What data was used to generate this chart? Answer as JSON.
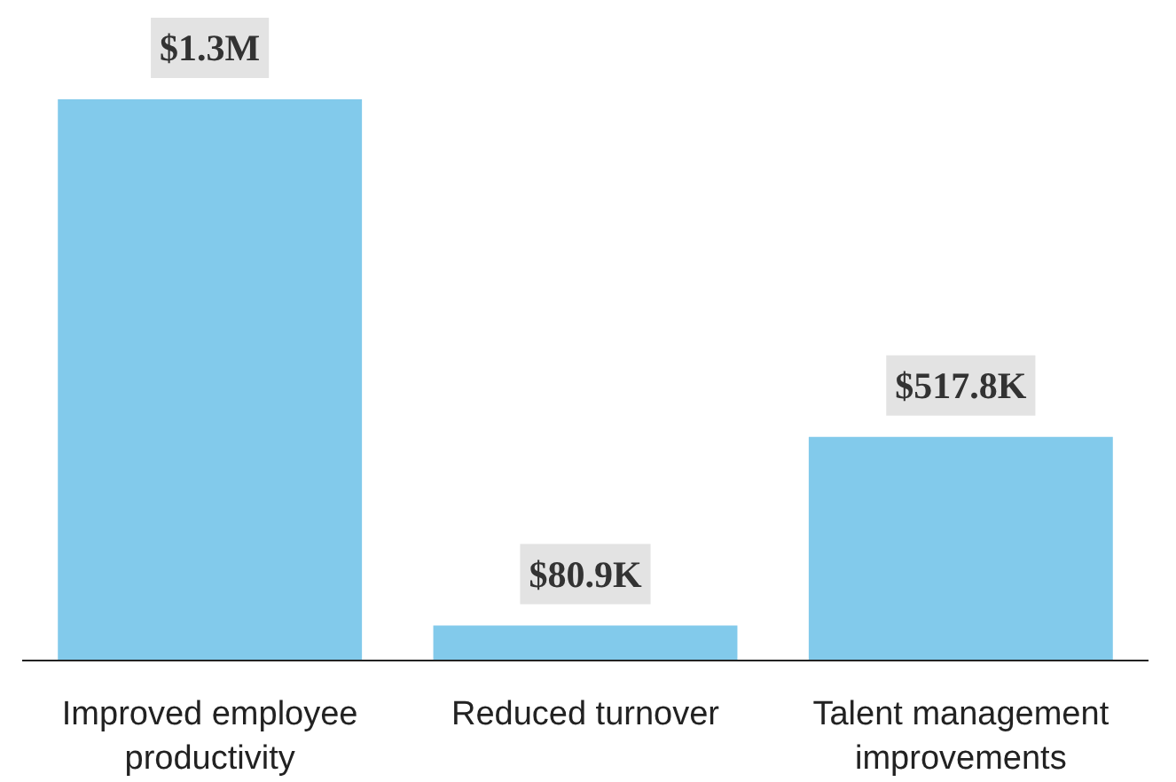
{
  "chart_data": {
    "type": "bar",
    "categories": [
      "Improved employee productivity",
      "Reduced turnover",
      "Talent management improvements"
    ],
    "values": [
      1300000,
      80900,
      517800
    ],
    "value_labels": [
      "$1.3M",
      "$80.9K",
      "$517.8K"
    ],
    "color": "#82caeb"
  }
}
